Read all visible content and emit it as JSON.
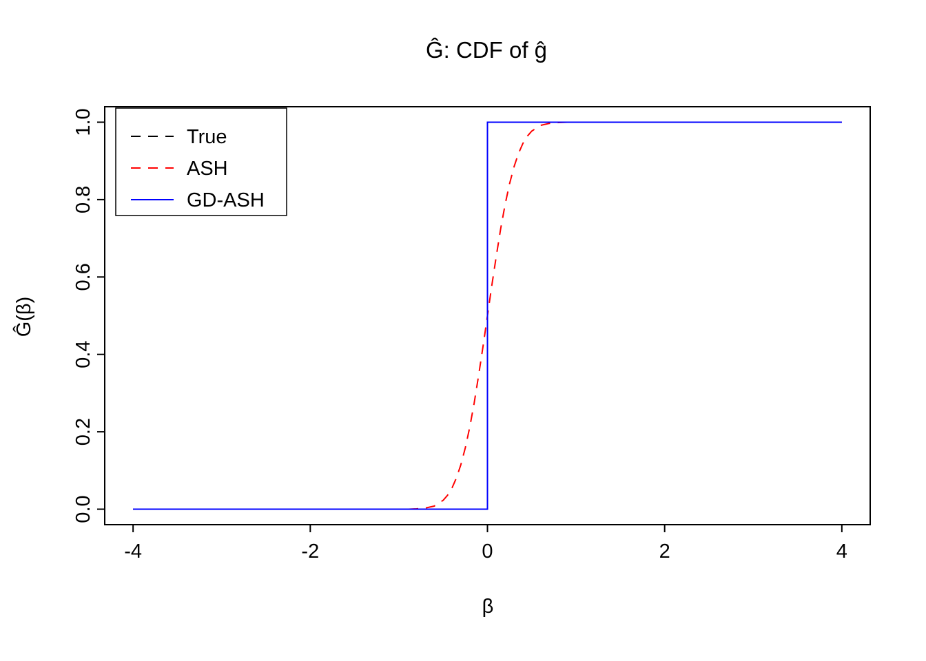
{
  "figure": {
    "background": "#FFFFFF"
  },
  "chart_data": {
    "type": "line",
    "title": "Ĝ: CDF of ĝ",
    "xlabel": "β",
    "ylabel": "Ĝ(β)",
    "xlim": [
      -4.32,
      4.32
    ],
    "ylim": [
      -0.04,
      1.04
    ],
    "x_ticks": [
      -4,
      -2,
      0,
      2,
      4
    ],
    "x_tick_labels": [
      "-4",
      "-2",
      "0",
      "2",
      "4"
    ],
    "y_ticks": [
      0.0,
      0.2,
      0.4,
      0.6,
      0.8,
      1.0
    ],
    "y_tick_labels": [
      "0.0",
      "0.2",
      "0.4",
      "0.6",
      "0.8",
      "1.0"
    ],
    "grid": false,
    "axis_color": "#000000",
    "legend": {
      "position": "top-left",
      "entries": [
        {
          "label": "True",
          "color": "#000000",
          "style": "dashed"
        },
        {
          "label": "ASH",
          "color": "#FF0000",
          "style": "dashed"
        },
        {
          "label": "GD-ASH",
          "color": "#0000FF",
          "style": "solid"
        }
      ]
    },
    "series": [
      {
        "name": "True",
        "color": "#000000",
        "style": "dashed",
        "x": [
          -4,
          0,
          0,
          4
        ],
        "y": [
          0,
          0,
          1,
          1
        ]
      },
      {
        "name": "ASH",
        "color": "#FF0000",
        "style": "dashed",
        "x": [
          -4,
          -1,
          -0.9,
          -0.8,
          -0.7,
          -0.6,
          -0.5,
          -0.45,
          -0.4,
          -0.35,
          -0.3,
          -0.25,
          -0.2,
          -0.15,
          -0.1,
          -0.05,
          0,
          0.05,
          0.1,
          0.15,
          0.2,
          0.25,
          0.3,
          0.35,
          0.4,
          0.45,
          0.5,
          0.6,
          0.7,
          0.8,
          0.9,
          1,
          4
        ],
        "y": [
          0,
          0,
          0,
          0.001,
          0.003,
          0.008,
          0.023,
          0.036,
          0.055,
          0.081,
          0.115,
          0.159,
          0.212,
          0.274,
          0.345,
          0.421,
          0.5,
          0.579,
          0.655,
          0.726,
          0.788,
          0.841,
          0.885,
          0.919,
          0.945,
          0.964,
          0.977,
          0.992,
          0.997,
          0.999,
          1,
          1,
          1
        ]
      },
      {
        "name": "GD-ASH",
        "color": "#0000FF",
        "style": "solid",
        "x": [
          -4,
          0,
          0,
          4
        ],
        "y": [
          0,
          0,
          1,
          1
        ]
      }
    ]
  }
}
